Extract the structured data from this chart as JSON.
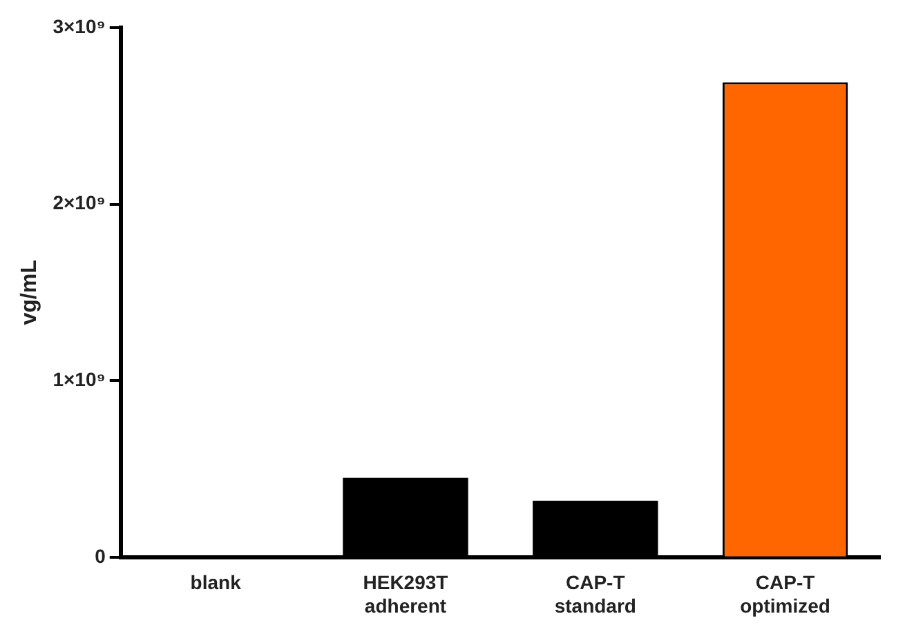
{
  "chart_data": {
    "type": "bar",
    "ylabel": "vg/mL",
    "categories": [
      "blank",
      "HEK293T adherent",
      "CAP-T standard",
      "CAP-T optimized"
    ],
    "values": [
      0,
      450000000,
      320000000,
      2690000000
    ],
    "colors": [
      "#000000",
      "#000000",
      "#000000",
      "#ff6600"
    ],
    "ylim": [
      0,
      3000000000
    ],
    "yticks": [
      {
        "value": 0,
        "label": "0"
      },
      {
        "value": 1000000000,
        "label": "1×10⁹"
      },
      {
        "value": 2000000000,
        "label": "2×10⁹"
      },
      {
        "value": 3000000000,
        "label": "3×10⁹"
      }
    ],
    "grid": false,
    "legend": false
  }
}
